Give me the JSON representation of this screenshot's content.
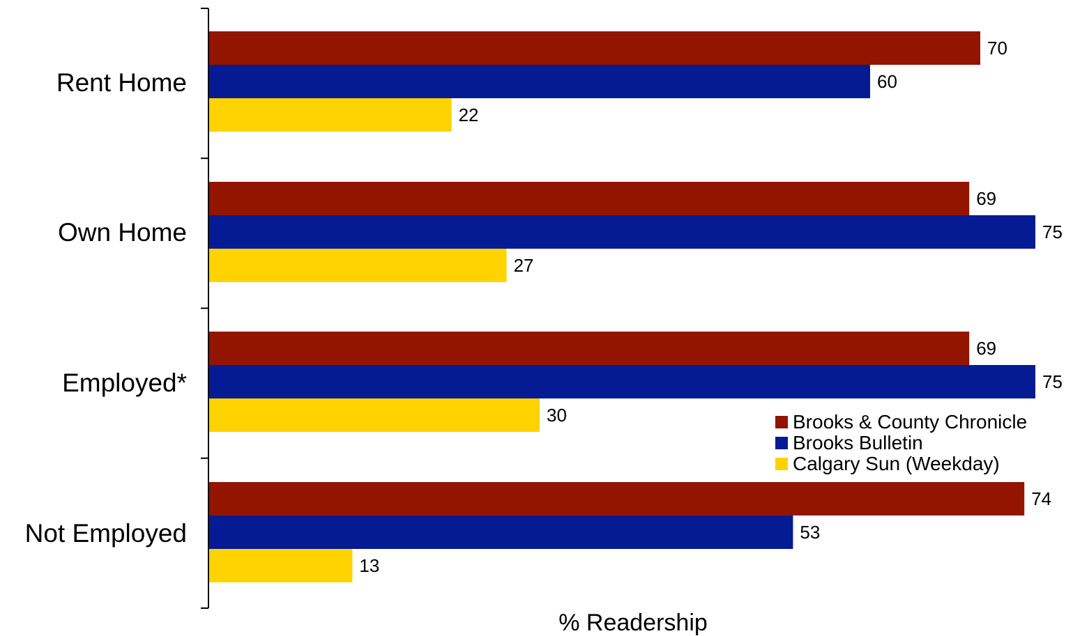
{
  "chart_data": {
    "type": "bar",
    "orientation": "horizontal",
    "categories": [
      "Rent Home",
      "Own Home",
      "Employed*",
      "Not Employed"
    ],
    "series": [
      {
        "name": "Brooks & County Chronicle",
        "color": "#931500",
        "values": [
          70,
          69,
          69,
          74
        ]
      },
      {
        "name": "Brooks Bulletin",
        "color": "#041B94",
        "values": [
          60,
          75,
          75,
          53
        ]
      },
      {
        "name": "Calgary Sun (Weekday)",
        "color": "#FFD300",
        "values": [
          22,
          27,
          30,
          13
        ]
      }
    ],
    "xlabel": "% Readership",
    "xlim": [
      0,
      75
    ],
    "data_labels": true,
    "grid": false,
    "legend_position": "lower-right"
  }
}
